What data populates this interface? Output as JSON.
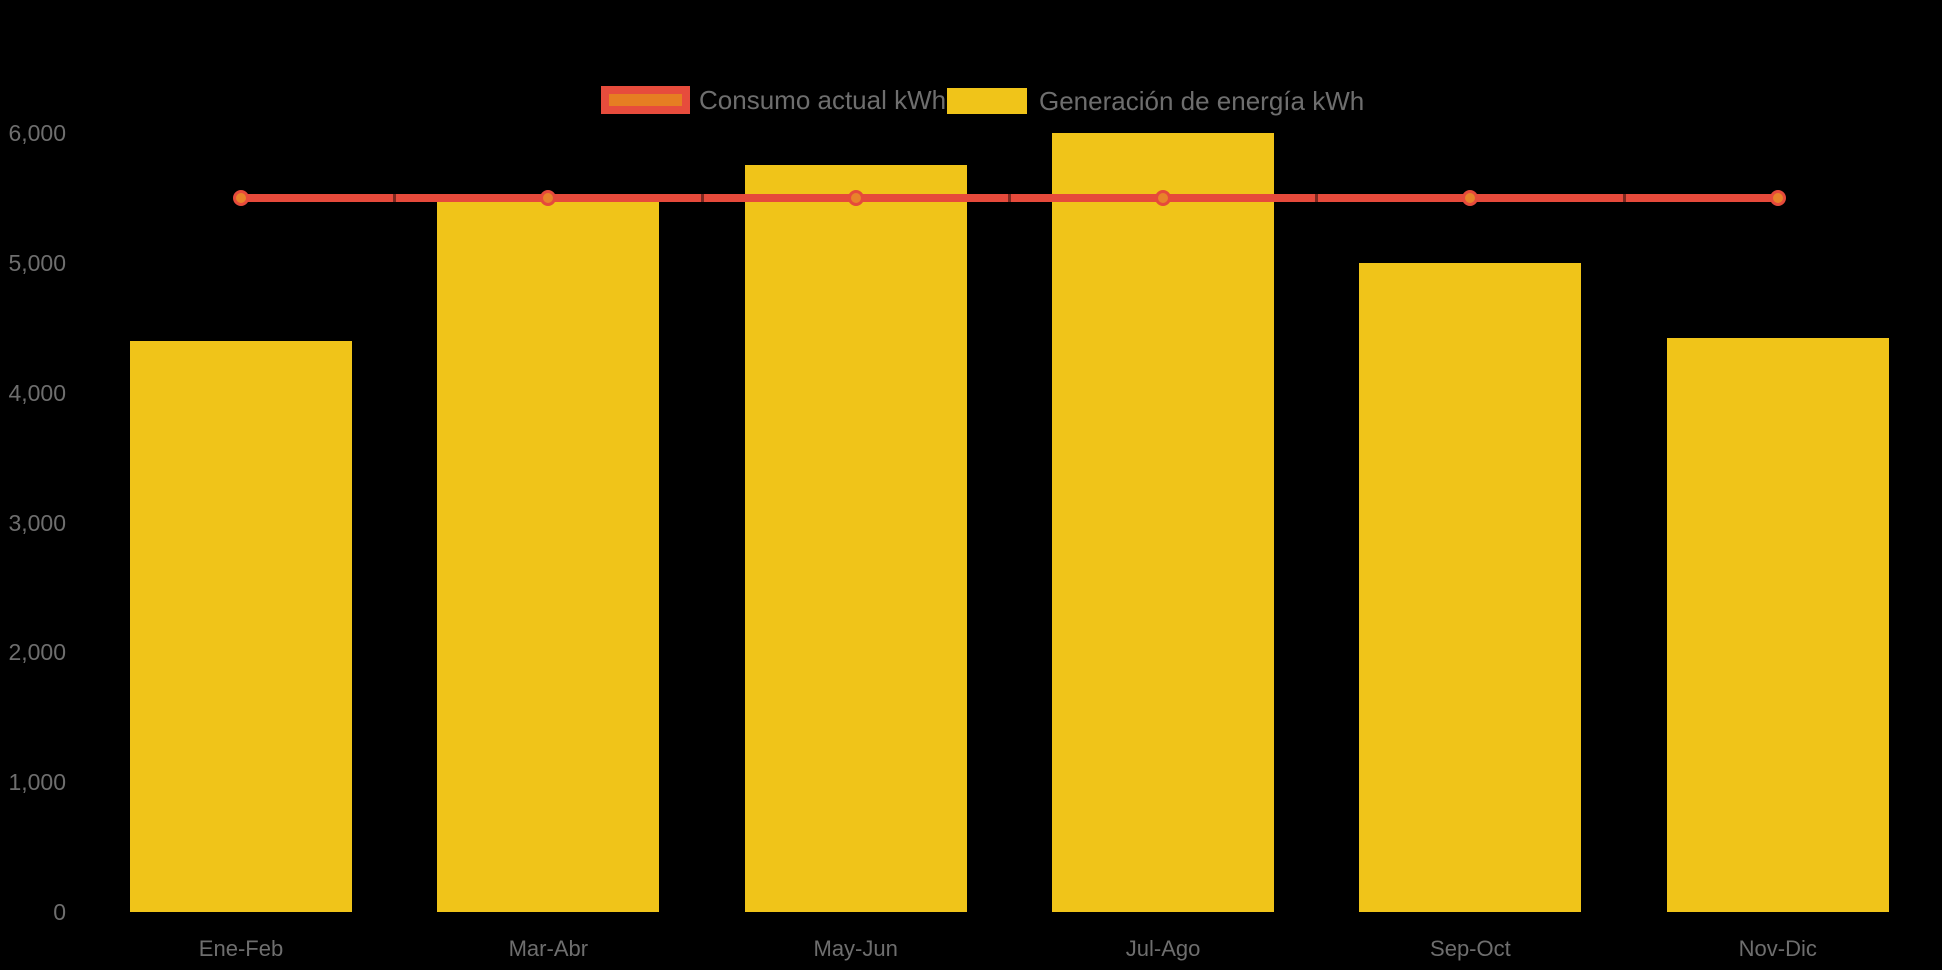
{
  "chart_data": {
    "type": "bar",
    "categories": [
      "Ene-Feb",
      "Mar-Abr",
      "May-Jun",
      "Jul-Ago",
      "Sep-Oct",
      "Nov-Dic"
    ],
    "series": [
      {
        "name": "Consumo actual kWh",
        "type": "line",
        "values": [
          5500,
          5500,
          5500,
          5500,
          5500,
          5500
        ]
      },
      {
        "name": "Generación de energía kWh",
        "type": "bar",
        "values": [
          4400,
          5500,
          5750,
          6000,
          5000,
          4420
        ]
      }
    ],
    "ylim": [
      0,
      6000
    ],
    "y_tick_step": 1000,
    "y_tick_labels": [
      "0",
      "1,000",
      "2,000",
      "3,000",
      "4,000",
      "5,000",
      "6,000"
    ],
    "xlabel": "",
    "ylabel": "",
    "title": "",
    "grid": false,
    "legend_position": "top"
  },
  "colors": {
    "bar_yellow": "#F0C419",
    "line_red": "#E64A3B",
    "marker_orange": "#E8832A",
    "legend_fill_orange": "#E67E22",
    "legend_border_red": "#E74C3C",
    "text_gray": "#6E6E6E",
    "background": "#000000"
  }
}
